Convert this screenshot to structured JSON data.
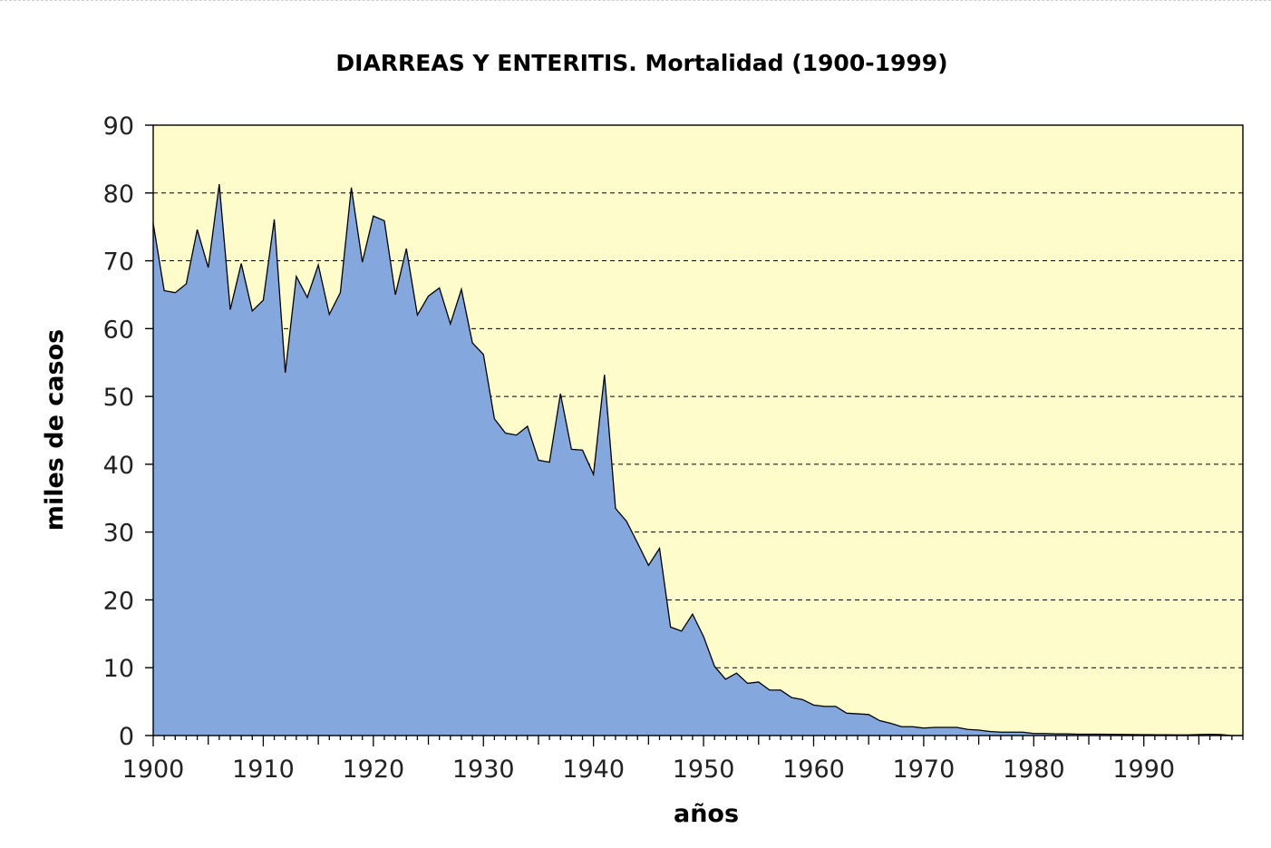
{
  "chart_data": {
    "type": "area",
    "title": "DIARREAS Y ENTERITIS. Mortalidad (1900-1999)",
    "xlabel": "años",
    "ylabel": "miles de casos",
    "xlim": [
      1900,
      1999
    ],
    "ylim": [
      0,
      90
    ],
    "x_ticks": [
      "1900",
      "1910",
      "1920",
      "1930",
      "1940",
      "1950",
      "1960",
      "1970",
      "1980",
      "1990"
    ],
    "y_ticks": [
      "0",
      "10",
      "20",
      "30",
      "40",
      "50",
      "60",
      "70",
      "80",
      "90"
    ],
    "grid": "horizontal dashed",
    "colors": {
      "fill": "#84a7de",
      "plot_background": "#fffccc",
      "line": "#000000",
      "grid": "#000000"
    },
    "x": [
      1900,
      1901,
      1902,
      1903,
      1904,
      1905,
      1906,
      1907,
      1908,
      1909,
      1910,
      1911,
      1912,
      1913,
      1914,
      1915,
      1916,
      1917,
      1918,
      1919,
      1920,
      1921,
      1922,
      1923,
      1924,
      1925,
      1926,
      1927,
      1928,
      1929,
      1930,
      1931,
      1932,
      1933,
      1934,
      1935,
      1936,
      1937,
      1938,
      1939,
      1940,
      1941,
      1942,
      1943,
      1944,
      1945,
      1946,
      1947,
      1948,
      1949,
      1950,
      1951,
      1952,
      1953,
      1954,
      1955,
      1956,
      1957,
      1958,
      1959,
      1960,
      1961,
      1962,
      1963,
      1964,
      1965,
      1966,
      1967,
      1968,
      1969,
      1970,
      1971,
      1972,
      1973,
      1974,
      1975,
      1976,
      1977,
      1978,
      1979,
      1980,
      1981,
      1982,
      1983,
      1984,
      1985,
      1986,
      1987,
      1988,
      1989,
      1990,
      1991,
      1992,
      1993,
      1994,
      1995,
      1996,
      1997,
      1998,
      1999
    ],
    "values": [
      75.5,
      65.6,
      65.3,
      66.6,
      74.6,
      69.0,
      81.3,
      62.8,
      69.6,
      62.6,
      64.2,
      76.1,
      53.5,
      67.7,
      64.6,
      69.4,
      62.1,
      65.3,
      80.8,
      69.8,
      76.6,
      75.9,
      65.0,
      71.8,
      62.0,
      64.8,
      66.0,
      60.7,
      65.8,
      57.9,
      56.2,
      46.7,
      44.6,
      44.3,
      45.6,
      40.6,
      40.3,
      50.4,
      42.2,
      42.1,
      38.5,
      53.2,
      33.5,
      31.6,
      28.4,
      25.1,
      27.6,
      16.0,
      15.4,
      17.9,
      14.6,
      10.2,
      8.3,
      9.2,
      7.7,
      7.9,
      6.7,
      6.7,
      5.6,
      5.3,
      4.5,
      4.3,
      4.3,
      3.3,
      3.2,
      3.1,
      2.2,
      1.8,
      1.3,
      1.3,
      1.1,
      1.2,
      1.2,
      1.2,
      0.9,
      0.8,
      0.6,
      0.5,
      0.5,
      0.5,
      0.3,
      0.3,
      0.25,
      0.25,
      0.2,
      0.2,
      0.2,
      0.18,
      0.17,
      0.15,
      0.13,
      0.12,
      0.12,
      0.1,
      0.1,
      0.15,
      0.18,
      0.15,
      0.0,
      0.0
    ]
  }
}
